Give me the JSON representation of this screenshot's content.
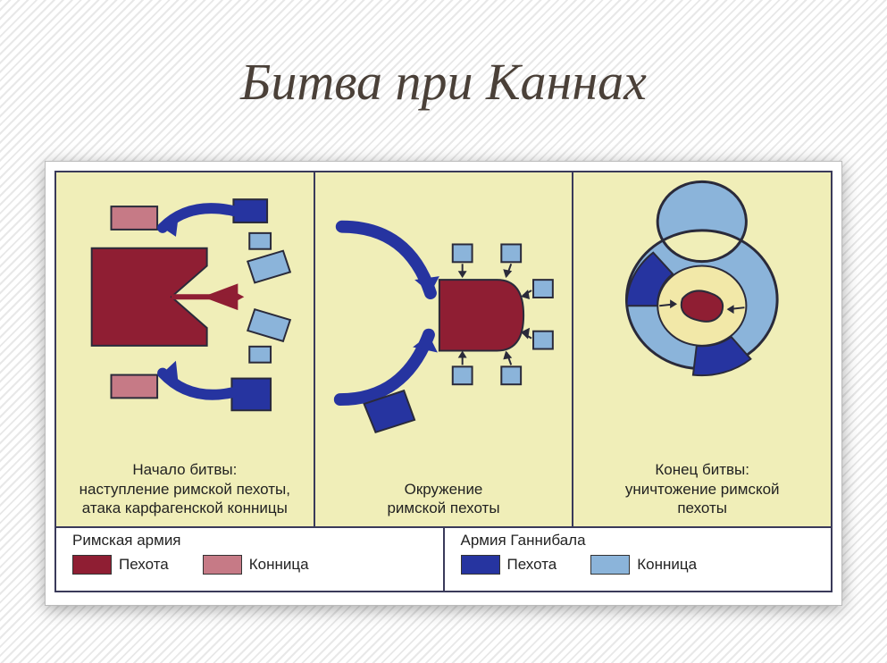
{
  "title": "Битва при Каннах",
  "colors": {
    "panel_bg": "#f0eeb8",
    "panel_border": "#3a3a5a",
    "roman_infantry": "#8f1e33",
    "roman_cavalry": "#c67a86",
    "hannibal_infantry": "#2634a0",
    "hannibal_cavalry": "#8bb4da",
    "outline": "#2a2a3a",
    "ring_fill": "#f2e8a8"
  },
  "panels": [
    {
      "caption": "Начало битвы:\nнаступление римской пехоты,\nатака карфагенской конницы"
    },
    {
      "caption": "Окружение\nримской пехоты"
    },
    {
      "caption": "Конец битвы:\nуничтожение римской\nпехоты"
    }
  ],
  "legend": {
    "roman": {
      "title": "Римская армия",
      "items": [
        {
          "label": "Пехота",
          "color_key": "roman_infantry"
        },
        {
          "label": "Конница",
          "color_key": "roman_cavalry"
        }
      ]
    },
    "hannibal": {
      "title": "Армия Ганнибала",
      "items": [
        {
          "label": "Пехота",
          "color_key": "hannibal_infantry"
        },
        {
          "label": "Конница",
          "color_key": "hannibal_cavalry"
        }
      ]
    }
  },
  "typography": {
    "title_fontsize": 58,
    "caption_fontsize": 17,
    "legend_fontsize": 17
  }
}
